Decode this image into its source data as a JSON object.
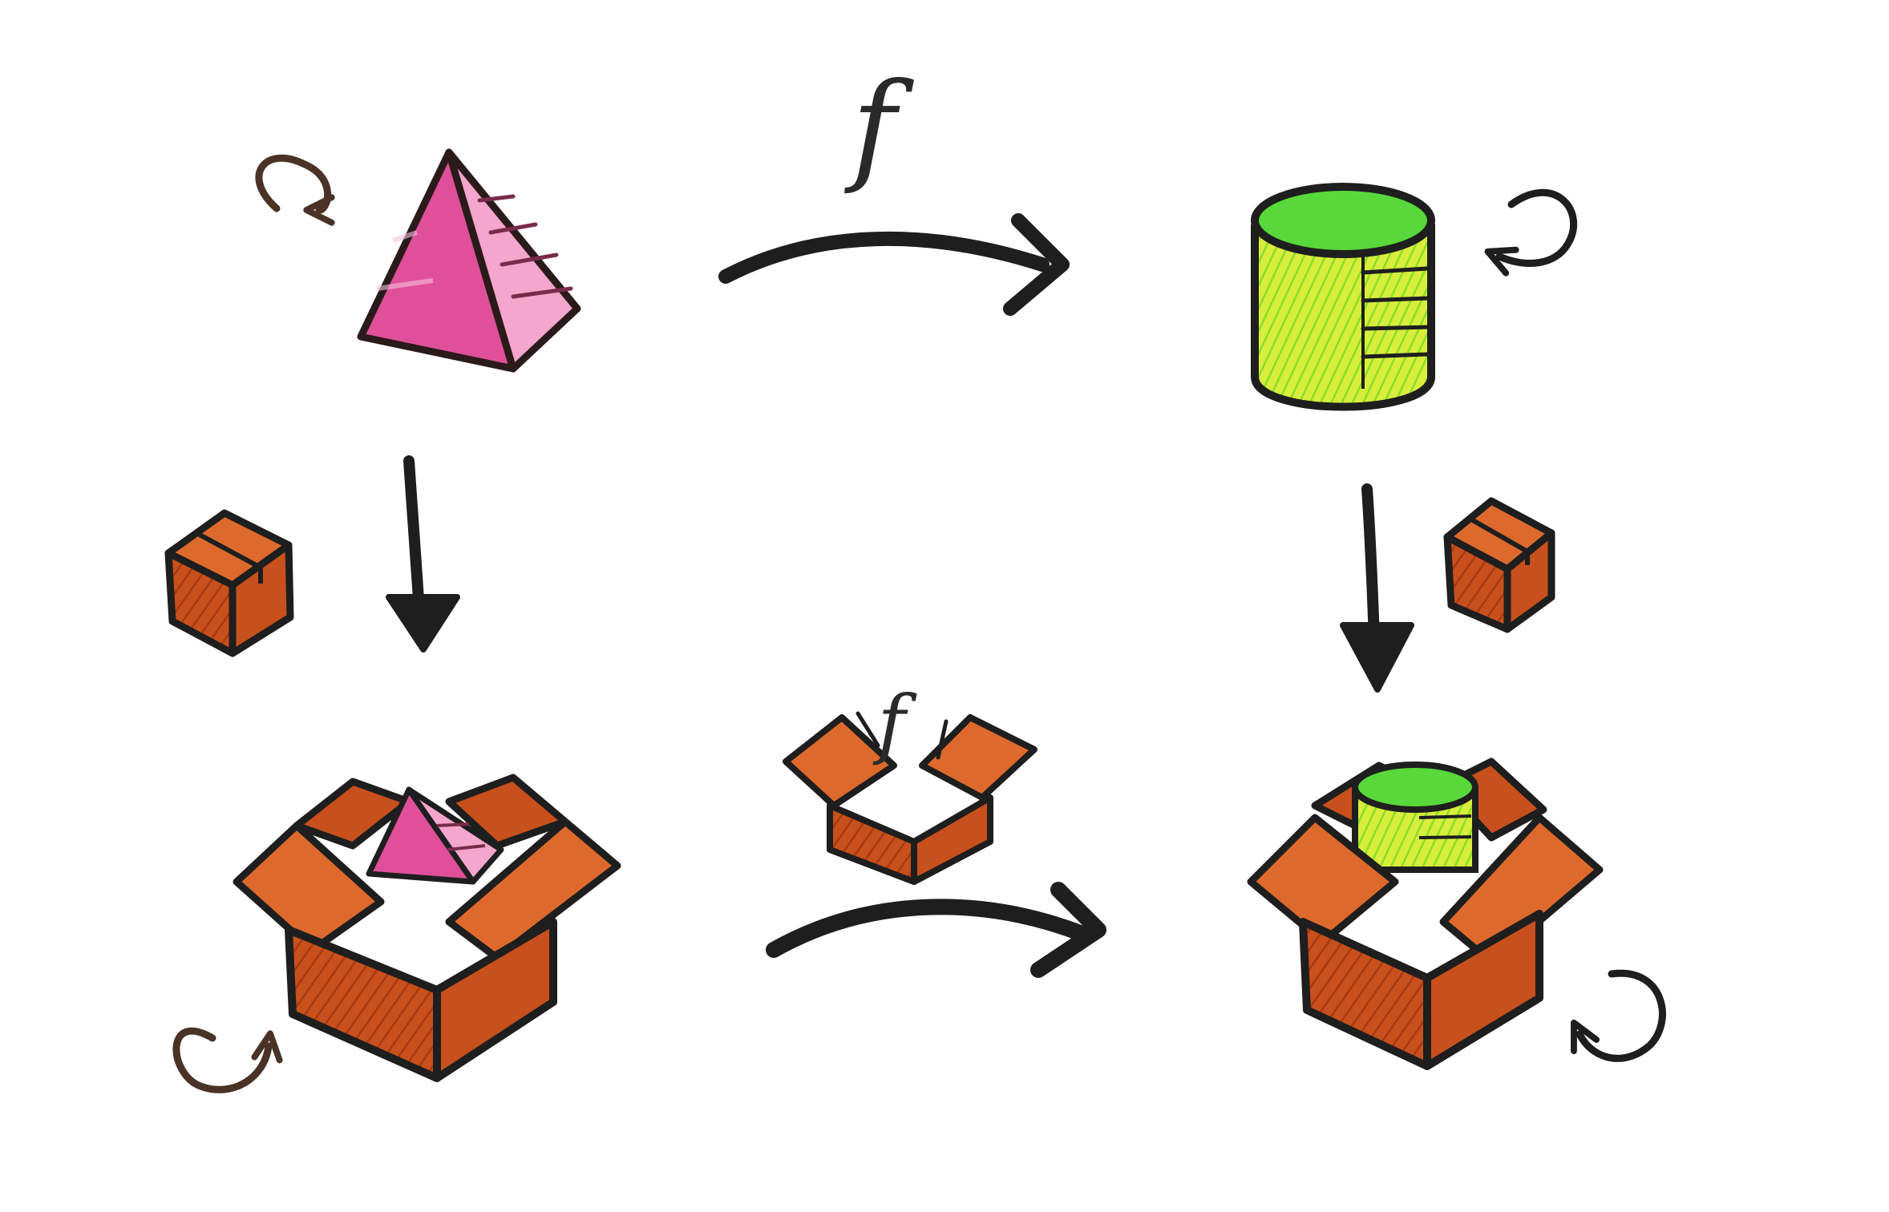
{
  "diagram": {
    "morphism_label": "f",
    "lifted_morphism_label": "f"
  },
  "colors": {
    "background": "#ffffff",
    "ink": "#1e1e1e",
    "loop_ink": "#4a3326",
    "pyramid_pink": "#e0509a",
    "pyramid_pink_light": "#f4a6cc",
    "cylinder_green": "#58d83a",
    "cylinder_yellow": "#d8ee3c",
    "box_orange": "#c8501c",
    "box_orange_light": "#dd6a2c"
  },
  "icons": [
    "pyramid-icon",
    "cylinder-icon",
    "small-box-icon",
    "open-box-icon",
    "curved-arrow-icon",
    "down-arrow-icon",
    "loop-arrow-icon"
  ]
}
